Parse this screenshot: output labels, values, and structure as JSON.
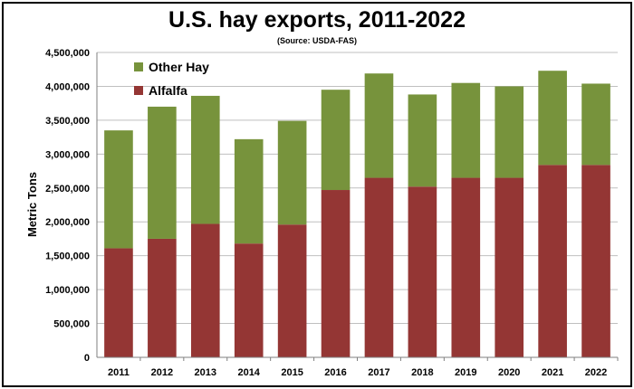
{
  "chart_data": {
    "type": "bar",
    "stacked": true,
    "title": "U.S. hay exports, 2011-2022",
    "subtitle": "(Source: USDA-FAS)",
    "xlabel": "",
    "ylabel": "Metric Tons",
    "ylim": [
      0,
      4500000
    ],
    "yticks": [
      0,
      500000,
      1000000,
      1500000,
      2000000,
      2500000,
      3000000,
      3500000,
      4000000,
      4500000
    ],
    "ytick_labels": [
      "0",
      "500,000",
      "1,000,000",
      "1,500,000",
      "2,000,000",
      "2,500,000",
      "3,000,000",
      "3,500,000",
      "4,000,000",
      "4,500,000"
    ],
    "grid": true,
    "legend_position": "top-left",
    "categories": [
      "2011",
      "2012",
      "2013",
      "2014",
      "2015",
      "2016",
      "2017",
      "2018",
      "2019",
      "2020",
      "2021",
      "2022"
    ],
    "series": [
      {
        "name": "Alfalfa",
        "color": "#943634",
        "values": [
          1610000,
          1750000,
          1970000,
          1680000,
          1960000,
          2470000,
          2650000,
          2520000,
          2650000,
          2650000,
          2840000,
          2840000
        ]
      },
      {
        "name": "Other Hay",
        "color": "#77933C",
        "values": [
          1740000,
          1950000,
          1890000,
          1540000,
          1530000,
          1480000,
          1540000,
          1360000,
          1400000,
          1350000,
          1390000,
          1200000
        ]
      }
    ],
    "legend_order": [
      "Other Hay",
      "Alfalfa"
    ]
  }
}
